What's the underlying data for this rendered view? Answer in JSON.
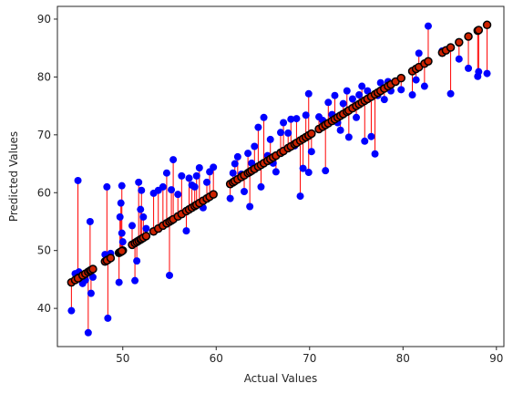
{
  "chart_data": {
    "type": "scatter",
    "title": "",
    "xlabel": "Actual Values",
    "ylabel": "Predicted Values",
    "xlim": [
      43.0,
      90.8
    ],
    "ylim": [
      33.4,
      92.2
    ],
    "xticks": [
      50,
      60,
      70,
      80,
      90
    ],
    "yticks": [
      40,
      50,
      60,
      70,
      80,
      90
    ],
    "grid": false,
    "colors": {
      "predicted": "#0000ff",
      "actual": "#000000",
      "actual_edge": "#000000",
      "actual_fill": "#cc2200",
      "residual": "#ff0000"
    },
    "series": [
      {
        "marker": "predicted",
        "points": [
          [
            44.5,
            39.6
          ],
          [
            44.9,
            46.0
          ],
          [
            45.3,
            46.3
          ],
          [
            45.2,
            62.1
          ],
          [
            45.7,
            44.3
          ],
          [
            46.0,
            44.9
          ],
          [
            46.3,
            35.8
          ],
          [
            46.5,
            55.0
          ],
          [
            46.6,
            42.6
          ],
          [
            46.8,
            45.4
          ],
          [
            48.1,
            49.3
          ],
          [
            48.4,
            38.3
          ],
          [
            48.3,
            61.0
          ],
          [
            48.7,
            49.5
          ],
          [
            49.6,
            44.5
          ],
          [
            49.7,
            55.8
          ],
          [
            49.8,
            58.2
          ],
          [
            49.9,
            61.2
          ],
          [
            50.0,
            51.5
          ],
          [
            49.9,
            53.0
          ],
          [
            51.0,
            54.3
          ],
          [
            51.3,
            44.8
          ],
          [
            51.5,
            48.2
          ],
          [
            51.7,
            61.8
          ],
          [
            51.9,
            57.1
          ],
          [
            52.0,
            60.4
          ],
          [
            52.2,
            55.8
          ],
          [
            52.5,
            53.8
          ],
          [
            53.3,
            59.9
          ],
          [
            53.8,
            60.4
          ],
          [
            54.3,
            61.0
          ],
          [
            54.7,
            63.4
          ],
          [
            55.0,
            45.7
          ],
          [
            55.2,
            60.5
          ],
          [
            55.4,
            65.7
          ],
          [
            55.9,
            59.7
          ],
          [
            56.3,
            62.9
          ],
          [
            56.8,
            53.4
          ],
          [
            57.1,
            62.5
          ],
          [
            57.4,
            61.3
          ],
          [
            57.7,
            61.0
          ],
          [
            57.9,
            62.9
          ],
          [
            58.2,
            64.3
          ],
          [
            58.6,
            57.4
          ],
          [
            59.0,
            61.8
          ],
          [
            59.3,
            63.6
          ],
          [
            59.7,
            64.4
          ],
          [
            61.5,
            59.0
          ],
          [
            61.8,
            63.4
          ],
          [
            62.0,
            65.0
          ],
          [
            62.3,
            66.2
          ],
          [
            62.7,
            63.2
          ],
          [
            63.0,
            60.2
          ],
          [
            63.4,
            66.8
          ],
          [
            63.6,
            57.6
          ],
          [
            63.8,
            65.1
          ],
          [
            64.1,
            68.0
          ],
          [
            64.5,
            71.3
          ],
          [
            64.8,
            61.0
          ],
          [
            65.1,
            73.0
          ],
          [
            65.5,
            66.4
          ],
          [
            65.8,
            69.2
          ],
          [
            66.1,
            65.1
          ],
          [
            66.4,
            63.6
          ],
          [
            66.9,
            70.4
          ],
          [
            67.2,
            72.1
          ],
          [
            67.7,
            70.3
          ],
          [
            68.0,
            72.7
          ],
          [
            68.4,
            68.1
          ],
          [
            68.6,
            72.8
          ],
          [
            69.0,
            59.4
          ],
          [
            69.3,
            64.2
          ],
          [
            69.6,
            73.4
          ],
          [
            69.9,
            77.1
          ],
          [
            69.9,
            63.5
          ],
          [
            70.2,
            67.1
          ],
          [
            71.0,
            73.1
          ],
          [
            71.4,
            72.5
          ],
          [
            71.7,
            63.8
          ],
          [
            72.0,
            75.6
          ],
          [
            72.4,
            73.5
          ],
          [
            72.7,
            76.8
          ],
          [
            73.0,
            72.1
          ],
          [
            73.3,
            70.8
          ],
          [
            73.6,
            75.4
          ],
          [
            74.0,
            77.6
          ],
          [
            74.2,
            69.6
          ],
          [
            74.6,
            76.2
          ],
          [
            75.0,
            73.0
          ],
          [
            75.3,
            76.9
          ],
          [
            75.6,
            78.4
          ],
          [
            75.9,
            68.9
          ],
          [
            76.2,
            77.6
          ],
          [
            76.6,
            69.7
          ],
          [
            77.0,
            66.7
          ],
          [
            77.3,
            76.8
          ],
          [
            77.6,
            79.0
          ],
          [
            78.0,
            76.1
          ],
          [
            78.4,
            79.2
          ],
          [
            78.7,
            77.6
          ],
          [
            79.2,
            79.3
          ],
          [
            79.8,
            77.8
          ],
          [
            81.0,
            76.9
          ],
          [
            81.4,
            79.5
          ],
          [
            81.7,
            84.1
          ],
          [
            82.3,
            78.4
          ],
          [
            82.7,
            88.8
          ],
          [
            84.2,
            84.5
          ],
          [
            84.6,
            84.7
          ],
          [
            85.1,
            77.1
          ],
          [
            86.0,
            83.1
          ],
          [
            87.0,
            81.5
          ],
          [
            88.0,
            80.1
          ],
          [
            88.1,
            80.9
          ],
          [
            89.0,
            80.6
          ]
        ]
      }
    ]
  }
}
